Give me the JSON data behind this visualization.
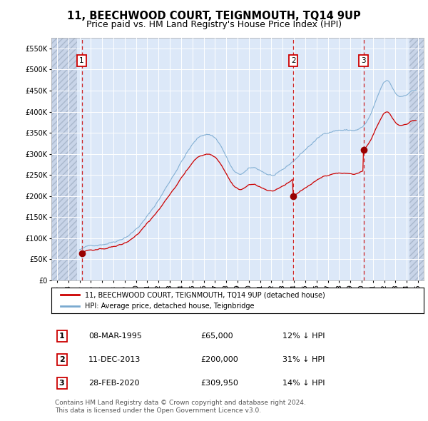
{
  "title": "11, BEECHWOOD COURT, TEIGNMOUTH, TQ14 9UP",
  "subtitle": "Price paid vs. HM Land Registry's House Price Index (HPI)",
  "title_fontsize": 10.5,
  "subtitle_fontsize": 9,
  "background_color": "#ffffff",
  "plot_bg_color": "#dce8f8",
  "hatch_color": "#c8d4e8",
  "grid_color": "#ffffff",
  "sale_dates": [
    1995.19,
    2013.94,
    2020.16
  ],
  "sale_prices": [
    65000,
    200000,
    309950
  ],
  "sale_labels": [
    "1",
    "2",
    "3"
  ],
  "red_line_color": "#cc0000",
  "blue_line_color": "#7aaad0",
  "sale_dot_color": "#990000",
  "vline_color": "#cc0000",
  "ylim": [
    0,
    575000
  ],
  "xlim_start": 1992.5,
  "xlim_end": 2025.5,
  "hatch_left_end": 1994.75,
  "hatch_right_start": 2024.25,
  "yticks": [
    0,
    50000,
    100000,
    150000,
    200000,
    250000,
    300000,
    350000,
    400000,
    450000,
    500000,
    550000
  ],
  "ytick_labels": [
    "£0",
    "£50K",
    "£100K",
    "£150K",
    "£200K",
    "£250K",
    "£300K",
    "£350K",
    "£400K",
    "£450K",
    "£500K",
    "£550K"
  ],
  "xtick_years": [
    1993,
    1994,
    1995,
    1996,
    1997,
    1998,
    1999,
    2000,
    2001,
    2002,
    2003,
    2004,
    2005,
    2006,
    2007,
    2008,
    2009,
    2010,
    2011,
    2012,
    2013,
    2014,
    2015,
    2016,
    2017,
    2018,
    2019,
    2020,
    2021,
    2022,
    2023,
    2024,
    2025
  ],
  "legend_line1": "11, BEECHWOOD COURT, TEIGNMOUTH, TQ14 9UP (detached house)",
  "legend_line2": "HPI: Average price, detached house, Teignbridge",
  "table_rows": [
    [
      "1",
      "08-MAR-1995",
      "£65,000",
      "12% ↓ HPI"
    ],
    [
      "2",
      "11-DEC-2013",
      "£200,000",
      "31% ↓ HPI"
    ],
    [
      "3",
      "28-FEB-2020",
      "£309,950",
      "14% ↓ HPI"
    ]
  ],
  "footer_text": "Contains HM Land Registry data © Crown copyright and database right 2024.\nThis data is licensed under the Open Government Licence v3.0."
}
